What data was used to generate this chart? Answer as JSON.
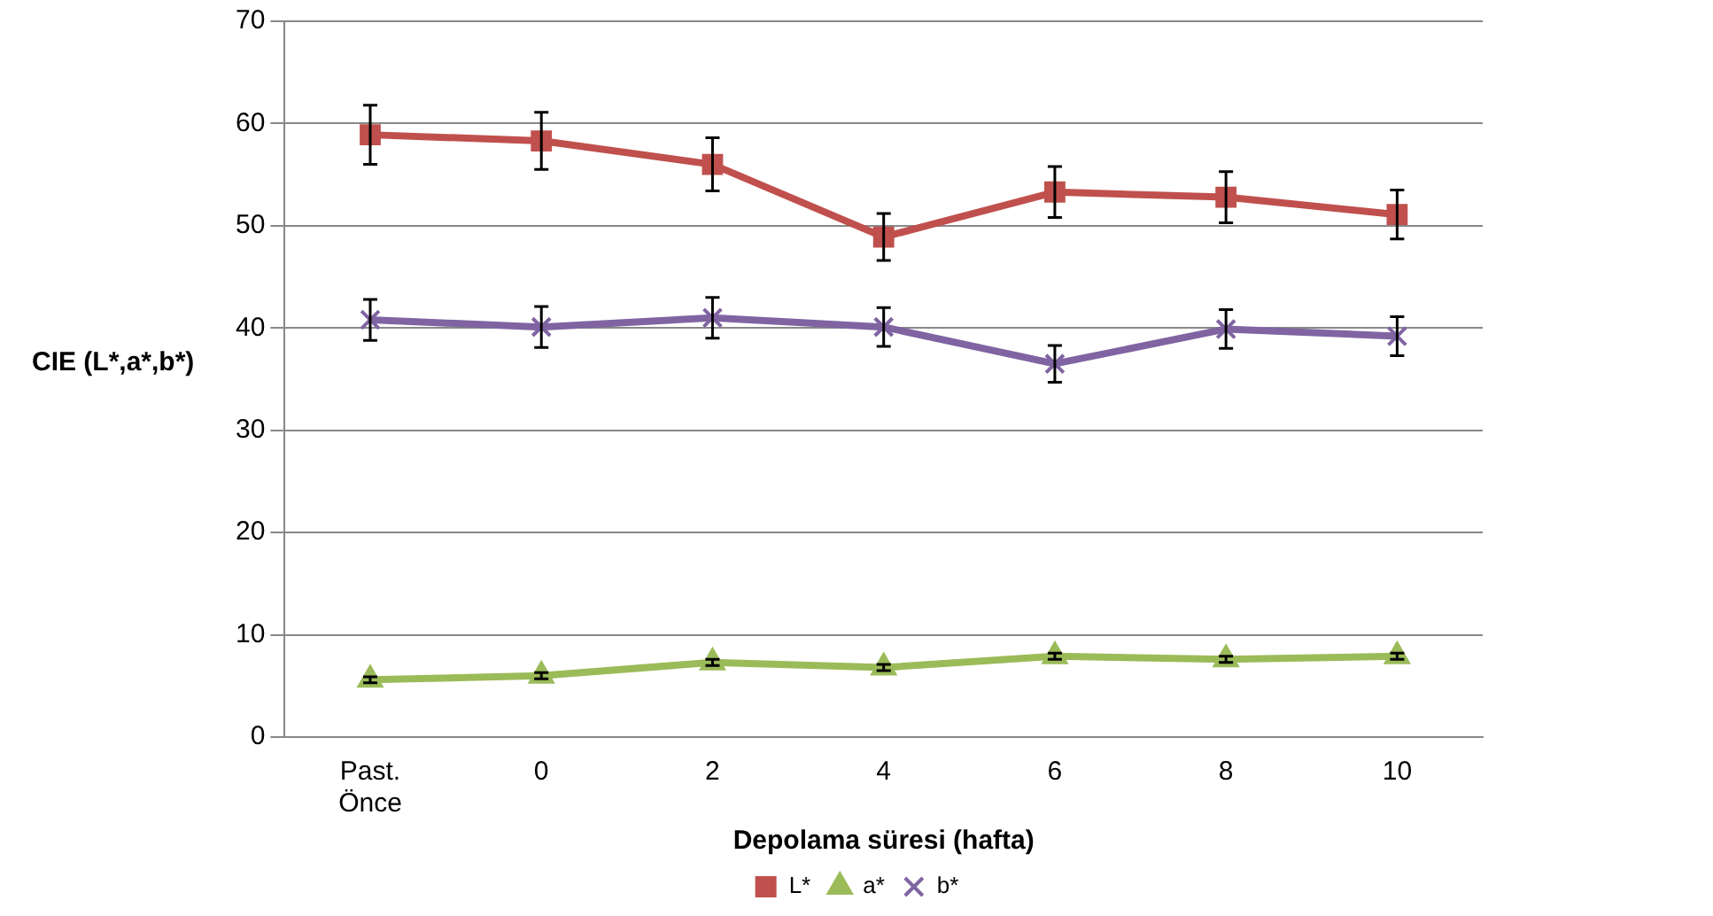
{
  "chart_data": {
    "type": "line",
    "xlabel": "Depolama süresi (hafta)",
    "ylabel": "CIE (L*,a*,b*)",
    "categories": [
      "Past. Önce",
      "0",
      "2",
      "4",
      "6",
      "8",
      "10"
    ],
    "series": [
      {
        "name": "L*",
        "color": "#c0504d",
        "marker": "square",
        "values": [
          58.9,
          58.3,
          56.0,
          48.9,
          53.3,
          52.8,
          51.1
        ],
        "errors": [
          2.9,
          2.8,
          2.6,
          2.3,
          2.5,
          2.5,
          2.4
        ]
      },
      {
        "name": "a*",
        "color": "#9bbb59",
        "marker": "triangle",
        "values": [
          5.6,
          6.0,
          7.3,
          6.8,
          7.9,
          7.6,
          7.9
        ],
        "errors": [
          0.3,
          0.3,
          0.3,
          0.3,
          0.3,
          0.3,
          0.3
        ]
      },
      {
        "name": "b*",
        "color": "#8064a2",
        "marker": "cross",
        "values": [
          40.8,
          40.1,
          41.0,
          40.1,
          36.5,
          39.9,
          39.2
        ],
        "errors": [
          2.0,
          2.0,
          2.0,
          1.9,
          1.8,
          1.9,
          1.9
        ]
      }
    ],
    "ylim": [
      0,
      70
    ],
    "yticks": [
      0,
      10,
      20,
      30,
      40,
      50,
      60,
      70
    ],
    "grid": "y",
    "legend": "bottom"
  }
}
